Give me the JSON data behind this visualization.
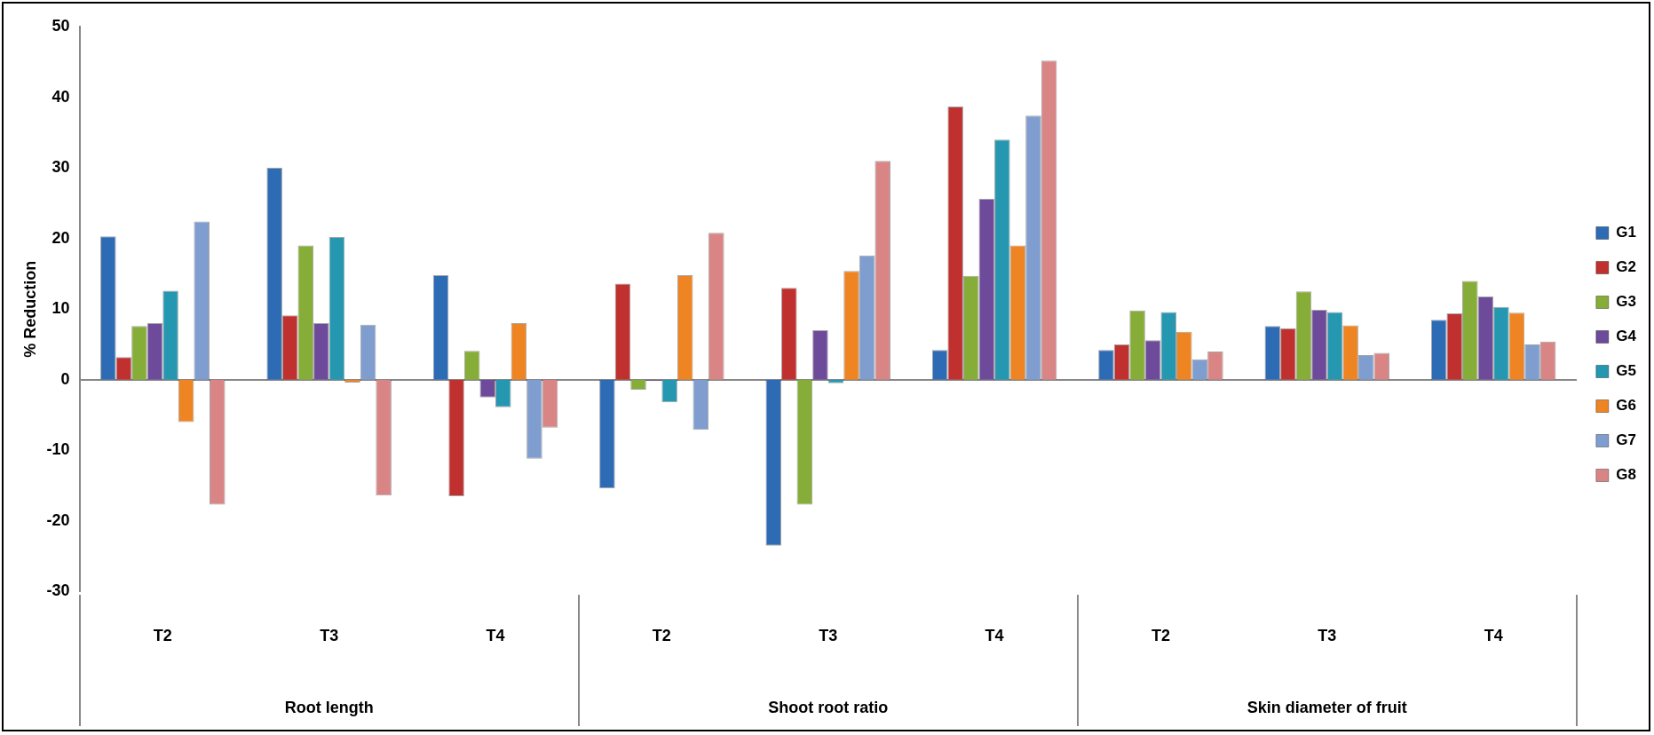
{
  "chart_data": {
    "type": "bar",
    "ylabel": "% Reduction",
    "categories": [
      "T2",
      "T3",
      "T4",
      "T2",
      "T3",
      "T4",
      "T2",
      "T3",
      "T4"
    ],
    "annotations": [
      "Root length",
      "Shoot root ratio",
      "Skin diameter of fruit"
    ],
    "series": [
      {
        "name": "G1",
        "color": "#2e6bb5",
        "values": [
          20.3,
          30,
          14.8,
          -15.4,
          -23.5,
          4.2,
          4.2,
          7.6,
          8.5
        ]
      },
      {
        "name": "G2",
        "color": "#c0302e",
        "values": [
          3.2,
          9.1,
          -16.5,
          13.6,
          13,
          38.7,
          5,
          7.3,
          9.4
        ]
      },
      {
        "name": "G3",
        "color": "#86ad37",
        "values": [
          7.6,
          19,
          4.1,
          -1.4,
          -17.7,
          14.7,
          9.8,
          12.5,
          14
        ]
      },
      {
        "name": "G4",
        "color": "#6e4a9a",
        "values": [
          8,
          8,
          -2.5,
          -0.2,
          7,
          25.6,
          5.6,
          9.9,
          11.8
        ]
      },
      {
        "name": "G5",
        "color": "#2597b0",
        "values": [
          12.6,
          20.2,
          -3.9,
          -3.2,
          -0.5,
          34,
          9.6,
          9.6,
          10.3
        ]
      },
      {
        "name": "G6",
        "color": "#ef8423",
        "values": [
          -6,
          -0.4,
          8,
          14.8,
          15.4,
          19,
          6.8,
          7.7,
          9.5
        ]
      },
      {
        "name": "G7",
        "color": "#7f9dcf",
        "values": [
          22.4,
          7.8,
          -11.2,
          -7.1,
          17.6,
          37.4,
          2.9,
          3.5,
          5
        ]
      },
      {
        "name": "G8",
        "color": "#d98585",
        "values": [
          -17.7,
          -16.4,
          -6.8,
          20.8,
          31,
          45.2,
          4,
          3.8,
          5.4
        ]
      }
    ],
    "ylim": [
      -30,
      50
    ],
    "yticks": [
      -30,
      -20,
      -10,
      0,
      10,
      20,
      30,
      40,
      50
    ],
    "grid": false,
    "legend": "right"
  }
}
